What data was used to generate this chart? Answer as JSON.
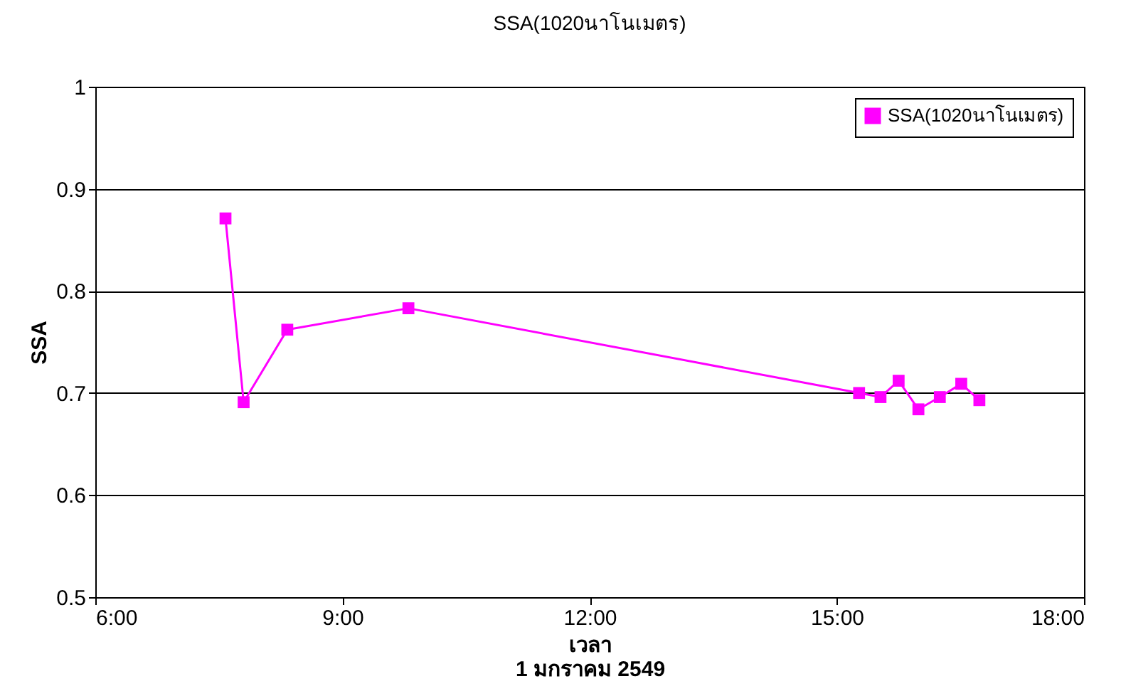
{
  "chart_data": {
    "type": "line",
    "title": "SSA(1020นาโนเมตร)",
    "xlabel": "เวลา\n1 มกราคม 2549",
    "ylabel": "SSA",
    "x": [
      7.58,
      7.8,
      8.33,
      9.8,
      15.27,
      15.53,
      15.75,
      15.99,
      16.25,
      16.51,
      16.73
    ],
    "series": [
      {
        "name": "SSA(1020นาโนเมตร)",
        "color": "#ff00ff",
        "values": [
          0.871,
          0.691,
          0.762,
          0.783,
          0.7,
          0.696,
          0.712,
          0.684,
          0.696,
          0.709,
          0.693
        ]
      }
    ],
    "xlim": [
      6,
      18
    ],
    "xticks": [
      {
        "value": 6,
        "label": "6:00"
      },
      {
        "value": 9,
        "label": "9:00"
      },
      {
        "value": 12,
        "label": "12:00"
      },
      {
        "value": 15,
        "label": "15:00"
      },
      {
        "value": 18,
        "label": "18:00"
      }
    ],
    "ylim": [
      0.5,
      1
    ],
    "yticks": [
      0.5,
      0.6,
      0.7,
      0.8,
      0.9,
      1
    ],
    "grid": "y",
    "legend": "top right",
    "marker": "square",
    "line_style": "solid"
  }
}
